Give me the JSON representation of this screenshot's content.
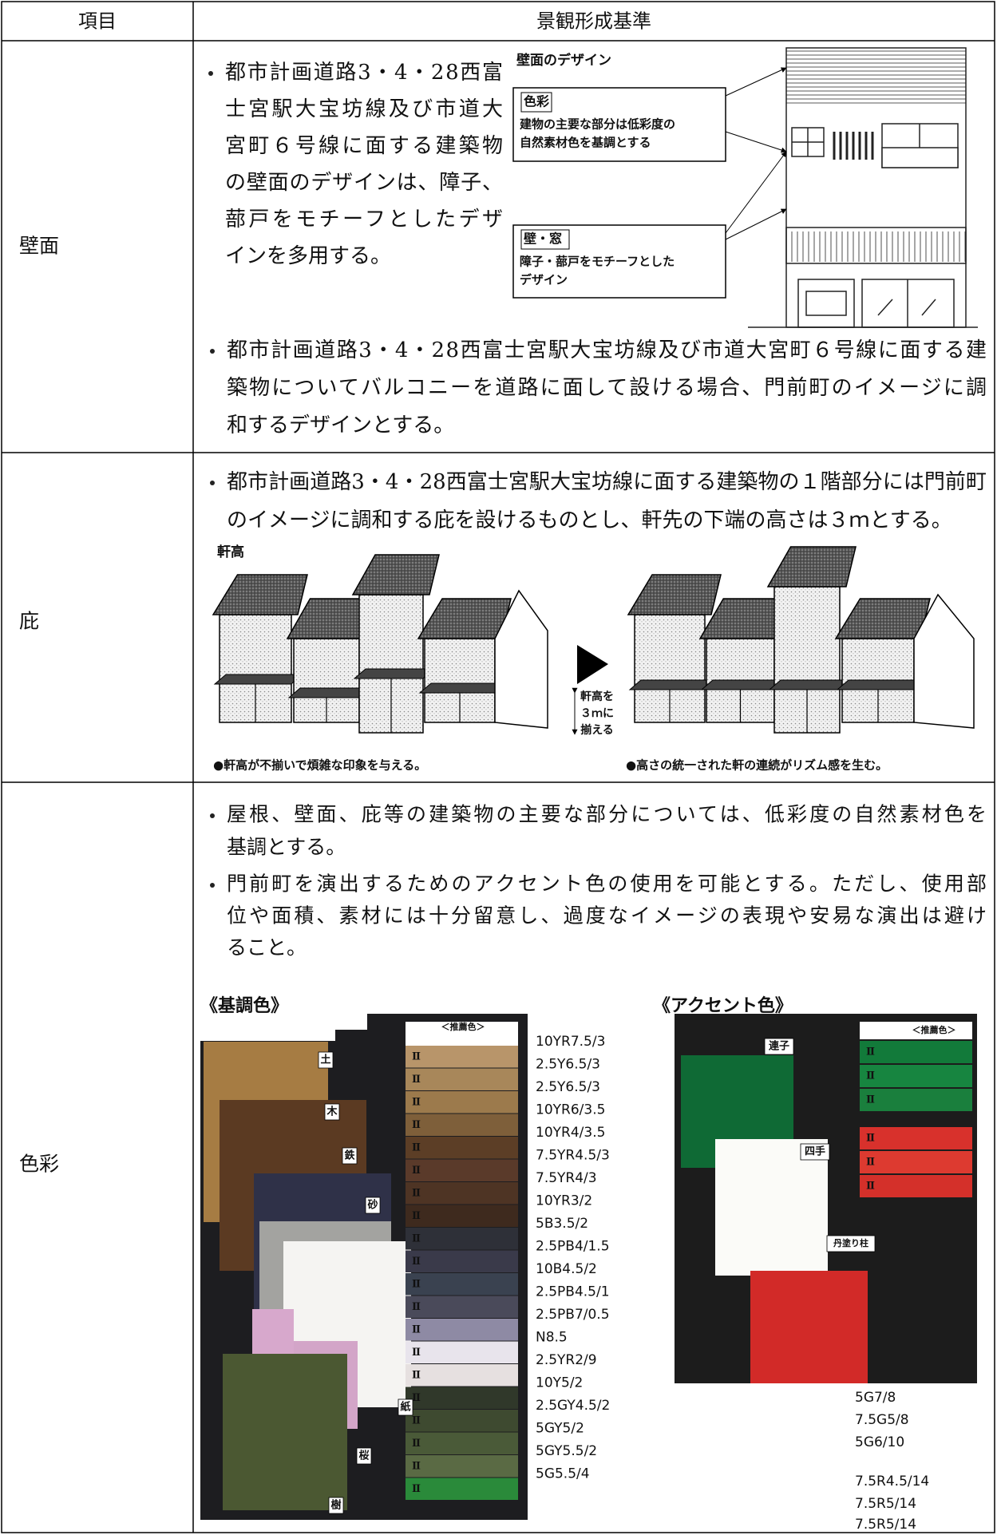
{
  "table": {
    "headers": [
      "項目",
      "景観形成基準"
    ],
    "rows": [
      {
        "label": "壁面",
        "bullets": [
          {
            "lines": [
              "都市計画道路3・4・28西富",
              "士宮駅大宝坊線及び市道大",
              "宮町６号線に面する建築物",
              "の壁面のデザインは、障子、",
              "蔀戸をモチーフとしたデザ",
              "インを多用する。"
            ]
          },
          {
            "lines": [
              "都市計画道路3・4・28西富士宮駅大宝坊線及び市道大宮町６号線に面する建",
              "築物についてバルコニーを道路に面して設ける場合、門前町のイメージに調",
              "和するデザインとする。"
            ]
          }
        ],
        "figure": {
          "title": "壁面のデザイン",
          "callouts": [
            {
              "title": "色彩",
              "lines": [
                "建物の主要な部分は低彩度の",
                "自然素材色を基調とする"
              ]
            },
            {
              "title": "壁・窓",
              "lines": [
                "障子・蔀戸をモチーフとした",
                "デザイン"
              ]
            }
          ]
        }
      },
      {
        "label": "庇",
        "bullets": [
          {
            "lines": [
              "都市計画道路3・4・28西富士宮駅大宝坊線に面する建築物の１階部分には門前町",
              "のイメージに調和する庇を設けるものとし、軒先の下端の高さは３ｍとする。"
            ]
          }
        ],
        "figure": {
          "title": "軒高",
          "arrow_lines": [
            "軒高を",
            "３ｍに",
            "揃える"
          ],
          "captions": [
            "●軒高が不揃いで煩雑な印象を与える。",
            "●高さの統一された軒の連続がリズム感を生む。"
          ]
        }
      },
      {
        "label": "色彩",
        "bullets": [
          {
            "lines": [
              "屋根、壁面、庇等の建築物の主要な部分については、低彩度の自然素材色を",
              "基調とする。"
            ]
          },
          {
            "lines": [
              "門前町を演出するためのアクセント色の使用を可能とする。ただし、使用部",
              "位や面積、素材には十分留意し、過度なイメージの表現や安易な演出は避け",
              "ること。"
            ]
          }
        ],
        "palettes": [
          {
            "heading": "《基調色》",
            "photo_labels": [
              "＜推薦色＞",
              "土",
              "木",
              "鉄",
              "砂",
              "紙",
              "桜",
              "樹"
            ],
            "codes": [
              "10YR7.5/3",
              "2.5Y6.5/3",
              "2.5Y6.5/3",
              "10YR6/3.5",
              "10YR4/3.5",
              "7.5YR4.5/3",
              "7.5YR4/3",
              "10YR3/2",
              "5B3.5/2",
              "2.5PB4/1.5",
              "10B4.5/2",
              "2.5PB4.5/1",
              "2.5PB7/0.5",
              "N8.5",
              "2.5YR2/9",
              "10Y5/2",
              "2.5GY4.5/2",
              "5GY5/2",
              "5GY5.5/2",
              "5G5.5/4"
            ]
          },
          {
            "heading": "《アクセント色》",
            "photo_labels": [
              "＜推薦色＞",
              "連子",
              "四手",
              "丹塗り柱"
            ],
            "codes": [
              "5G7/8",
              "7.5G5/8",
              "5G6/10",
              "7.5R4.5/14",
              "7.5R5/14",
              "7.5R5/14"
            ]
          }
        ]
      }
    ]
  }
}
